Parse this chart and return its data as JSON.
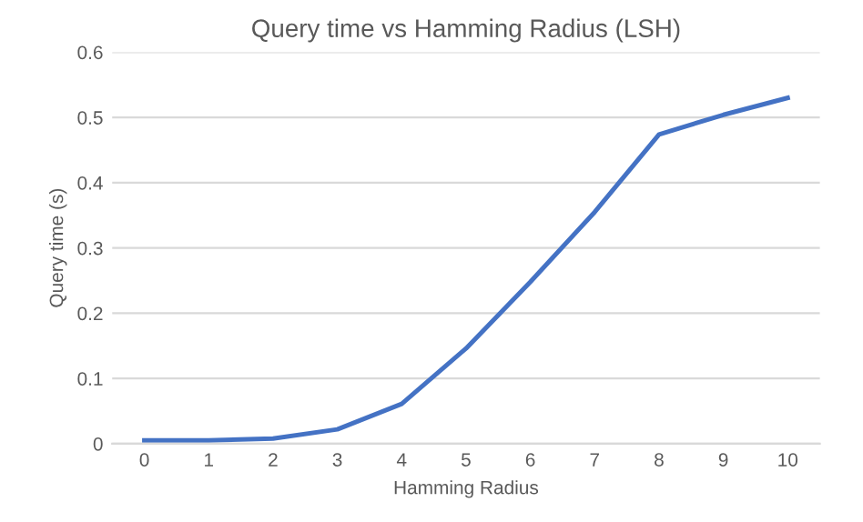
{
  "chart_data": {
    "type": "line",
    "title": "Query time vs Hamming Radius (LSH)",
    "xlabel": "Hamming Radius",
    "ylabel": "Query time (s)",
    "categories": [
      "0",
      "1",
      "2",
      "3",
      "4",
      "5",
      "6",
      "7",
      "8",
      "9",
      "10"
    ],
    "series": [
      {
        "color": "#4472c4",
        "values": [
          0.005,
          0.005,
          0.008,
          0.022,
          0.061,
          0.146,
          0.248,
          0.355,
          0.474,
          0.504,
          0.53
        ]
      }
    ],
    "ylim": [
      0,
      0.6
    ],
    "yticks": [
      {
        "value": 0,
        "label": "0"
      },
      0.1,
      0.2,
      0.3,
      0.4,
      0.5,
      0.6
    ],
    "grid": "y",
    "marker": "none",
    "line_style": "solid"
  }
}
